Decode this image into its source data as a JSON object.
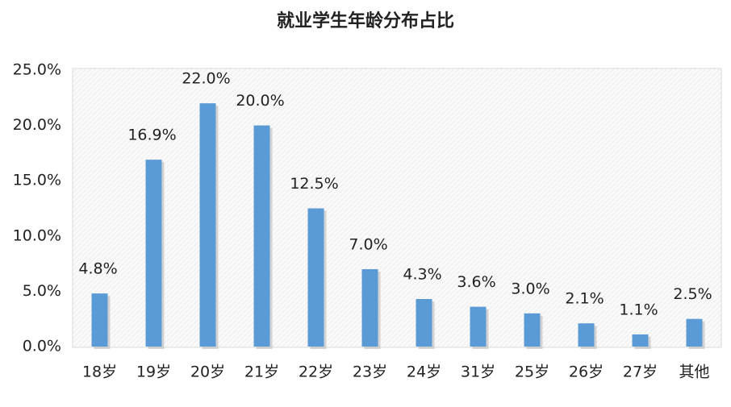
{
  "chart_data": {
    "type": "bar",
    "title": "就业学生年龄分布占比",
    "categories": [
      "18岁",
      "19岁",
      "20岁",
      "21岁",
      "22岁",
      "23岁",
      "24岁",
      "31岁",
      "25岁",
      "26岁",
      "27岁",
      "其他"
    ],
    "values": [
      4.8,
      16.9,
      22.0,
      20.0,
      12.5,
      7.0,
      4.3,
      3.6,
      3.0,
      2.1,
      1.1,
      2.5
    ],
    "value_labels": [
      "4.8%",
      "16.9%",
      "22.0%",
      "20.0%",
      "12.5%",
      "7.0%",
      "4.3%",
      "3.6%",
      "3.0%",
      "2.1%",
      "1.1%",
      "2.5%"
    ],
    "color": "#5b9bd5",
    "ylim": [
      0,
      25
    ],
    "yticks": [
      {
        "value": 0,
        "label": "0.0%"
      },
      {
        "value": 5,
        "label": "5.0%"
      },
      {
        "value": 10,
        "label": "10.0%"
      },
      {
        "value": 15,
        "label": "15.0%"
      },
      {
        "value": 20,
        "label": "20.0%"
      },
      {
        "value": 25,
        "label": "25.0%"
      }
    ],
    "grid": false
  }
}
